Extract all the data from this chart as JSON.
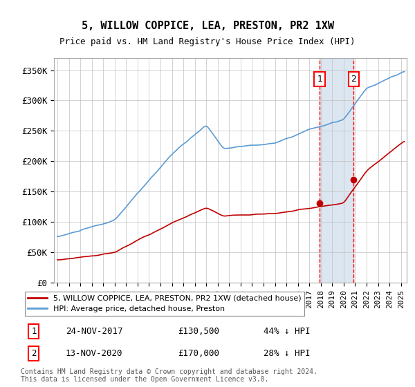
{
  "title": "5, WILLOW COPPICE, LEA, PRESTON, PR2 1XW",
  "subtitle": "Price paid vs. HM Land Registry's House Price Index (HPI)",
  "ylabel_ticks": [
    "£0",
    "£50K",
    "£100K",
    "£150K",
    "£200K",
    "£250K",
    "£300K",
    "£350K"
  ],
  "ytick_values": [
    0,
    50000,
    100000,
    150000,
    200000,
    250000,
    300000,
    350000
  ],
  "ylim": [
    0,
    370000
  ],
  "xlim_start": 1995.0,
  "xlim_end": 2025.5,
  "hpi_color": "#5b9bd5",
  "price_color": "#c00000",
  "background_color": "#ffffff",
  "plot_bg_color": "#ffffff",
  "grid_color": "#c0c0c0",
  "sale1_x": 2017.9,
  "sale1_y": 130500,
  "sale2_x": 2020.87,
  "sale2_y": 170000,
  "sale1_label": "24-NOV-2017",
  "sale1_price": "£130,500",
  "sale1_hpi": "44% ↓ HPI",
  "sale2_label": "13-NOV-2020",
  "sale2_price": "£170,000",
  "sale2_hpi": "28% ↓ HPI",
  "legend_line1": "5, WILLOW COPPICE, LEA, PRESTON, PR2 1XW (detached house)",
  "legend_line2": "HPI: Average price, detached house, Preston",
  "footer": "Contains HM Land Registry data © Crown copyright and database right 2024.\nThis data is licensed under the Open Government Licence v3.0.",
  "shade_color": "#dce6f1",
  "dashed_color": "#ff0000"
}
